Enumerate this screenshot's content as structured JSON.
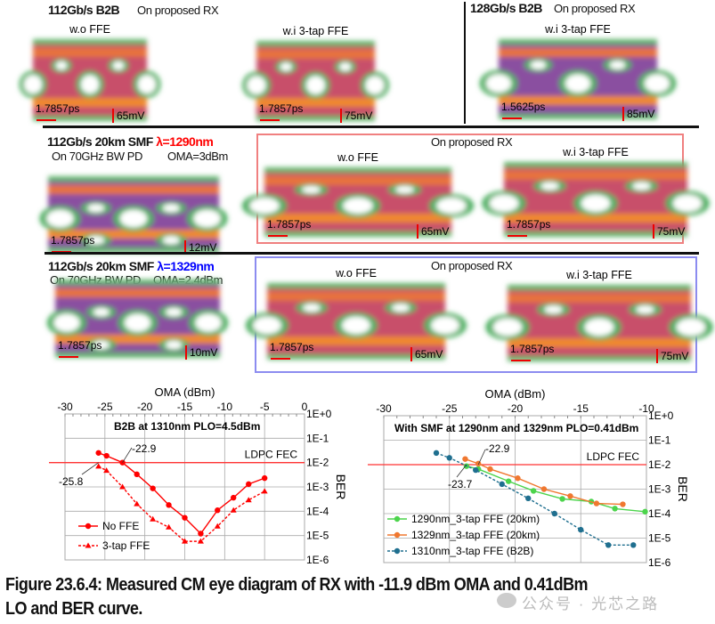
{
  "row1": {
    "title_left": "112Gb/s  B2B",
    "sub_left": "On proposed RX",
    "title_right": "128Gb/s  B2B",
    "sub_right": "On proposed RX",
    "eyes": [
      {
        "label": "w.o FFE",
        "time": "1.7857ps",
        "volt": "65mV"
      },
      {
        "label": "w.i 3-tap FFE",
        "time": "1.7857ps",
        "volt": "75mV"
      },
      {
        "label": "w.i 3-tap FFE",
        "time": "1.5625ps",
        "volt": "85mV"
      }
    ]
  },
  "row2": {
    "title": "112Gb/s  20km SMF",
    "lambda": "λ=1290nm",
    "lambda_color": "#ff0000",
    "pd": "On 70GHz BW PD",
    "oma": "OMA=3dBm",
    "box_title": "On proposed RX",
    "box_color": "#f08080",
    "eyes": [
      {
        "label": "",
        "time": "1.7857ps",
        "volt": "12mV"
      },
      {
        "label": "w.o FFE",
        "time": "1.7857ps",
        "volt": "65mV"
      },
      {
        "label": "w.i 3-tap FFE",
        "time": "1.7857ps",
        "volt": "75mV"
      }
    ]
  },
  "row3": {
    "title": "112Gb/s  20km SMF",
    "lambda": "λ=1329nm",
    "lambda_color": "#0000ff",
    "pd": "On 70GHz BW PD",
    "oma": "OMA=2.4dBm",
    "box_title": "On proposed RX",
    "box_color": "#8c8cf0",
    "eyes": [
      {
        "label": "",
        "time": "1.7857ps",
        "volt": "10mV"
      },
      {
        "label": "w.o FFE",
        "time": "1.7857ps",
        "volt": "65mV"
      },
      {
        "label": "w.i 3-tap FFE",
        "time": "1.7857ps",
        "volt": "75mV"
      }
    ]
  },
  "chart_data": [
    {
      "type": "line",
      "title": "B2B at 1310nm  PLO=4.5dBm",
      "xlabel": "OMA (dBm)",
      "ylabel": "BER",
      "y_scale": "log",
      "xlim": [
        -30,
        0
      ],
      "ylim": [
        1e-06,
        1
      ],
      "x_ticks": [
        "-30",
        "-25",
        "-20",
        "-15",
        "-10",
        "-5",
        "0"
      ],
      "y_ticks": [
        "1E+0",
        "1E-1",
        "1E-2",
        "1E-3",
        "1E-4",
        "1E-5",
        "1E-6"
      ],
      "grid": true,
      "legend": "bottom-left",
      "fec": {
        "label": "LDPC FEC",
        "value": 0.01,
        "color": "#ff3333"
      },
      "annotations": [
        {
          "text": "-22.9",
          "x": -22.8
        },
        {
          "text": "-25.8",
          "x": -25.8
        }
      ],
      "series": [
        {
          "name": "No FFE",
          "color": "#ff0000",
          "marker": "circle",
          "dash": false,
          "x": [
            -25.8,
            -24.8,
            -22.8,
            -21,
            -19,
            -17,
            -15,
            -13,
            -10.9,
            -8.9,
            -7,
            -5
          ],
          "y": [
            0.025,
            0.019,
            0.01,
            0.0033,
            0.00087,
            0.00018,
            5.4e-05,
            1.2e-05,
            0.00011,
            0.00036,
            0.0013,
            0.0023
          ]
        },
        {
          "name": "3-tap FFE",
          "color": "#ff0000",
          "marker": "triangle",
          "dash": true,
          "x": [
            -25.8,
            -24.8,
            -22.8,
            -21,
            -19,
            -17,
            -15,
            -13,
            -10.9,
            -8.9,
            -7,
            -5
          ],
          "y": [
            0.007,
            0.0047,
            0.001,
            0.0002,
            4.7e-05,
            2.2e-05,
            5.8e-06,
            5.8e-06,
            2.4e-05,
            0.00011,
            0.00029,
            0.00066
          ]
        }
      ]
    },
    {
      "type": "line",
      "title": "With SMF at 1290nm and 1329nm PLO=0.41dBm",
      "xlabel": "OMA (dBm)",
      "ylabel": "BER",
      "y_scale": "log",
      "xlim": [
        -30,
        -10
      ],
      "ylim": [
        1e-06,
        1
      ],
      "x_ticks": [
        "-30",
        "-25",
        "-20",
        "-15",
        "-10"
      ],
      "y_ticks": [
        "1E+0",
        "1E-1",
        "1E-2",
        "1E-3",
        "1E-4",
        "1E-5",
        "1E-6"
      ],
      "grid": true,
      "legend": "bottom-left",
      "fec": {
        "label": "LDPC FEC",
        "value": 0.01,
        "color": "#ff3333"
      },
      "annotations": [
        {
          "text": "-22.9",
          "x": -22.8
        },
        {
          "text": "-23.7",
          "x": -23.7
        }
      ],
      "series": [
        {
          "name": "1290nm_3-tap FFE (20km)",
          "color": "#4cd44c",
          "marker": "circle",
          "dash": false,
          "x": [
            -23.7,
            -22.8,
            -20.5,
            -18.6,
            -16.4,
            -14.2,
            -12.4,
            -10.1
          ],
          "y": [
            0.0087,
            0.0066,
            0.0021,
            0.00085,
            0.0004,
            0.00031,
            0.00016,
            0.00012
          ]
        },
        {
          "name": "1329nm_3-tap FFE (20km)",
          "color": "#f07830",
          "marker": "circle",
          "dash": false,
          "x": [
            -23.8,
            -22.8,
            -21.9,
            -19.8,
            -17.8,
            -15.8,
            -13.8,
            -11.8
          ],
          "y": [
            0.017,
            0.011,
            0.0066,
            0.0028,
            0.001,
            0.00052,
            0.00026,
            0.00024
          ]
        },
        {
          "name": "1310nm_3-tap FFE (B2B)",
          "color": "#1f6f8f",
          "marker": "circle",
          "dash": true,
          "x": [
            -26,
            -25,
            -23,
            -21,
            -19,
            -17,
            -15,
            -12.9,
            -11
          ],
          "y": [
            0.03,
            0.019,
            0.006,
            0.0016,
            0.00042,
            0.0001,
            2.2e-05,
            5.2e-06,
            5.2e-06
          ]
        }
      ]
    }
  ],
  "caption": {
    "line1": "Figure 23.6.4: Measured CM eye diagram of RX with -11.9 dBm OMA and 0.41dBm",
    "line2": "LO and BER curve."
  },
  "watermark": "公众号 · 光芯之路"
}
